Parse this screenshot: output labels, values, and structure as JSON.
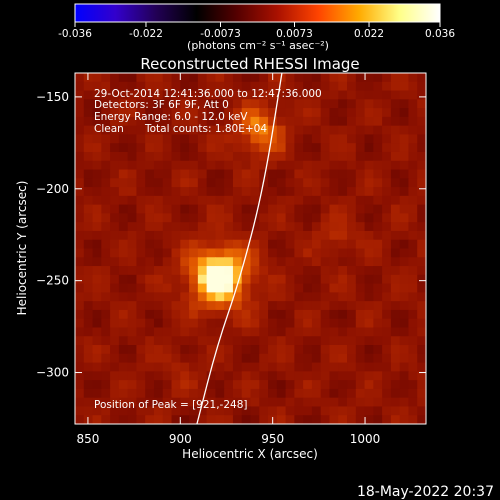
{
  "colorbar": {
    "min": -0.036,
    "max": 0.036,
    "ticks": [
      "-0.036",
      "-0.022",
      "-0.0073",
      "0.0073",
      "0.022",
      "0.036"
    ],
    "unit_label": "(photons cm⁻² s⁻¹ asec⁻²)",
    "colors": [
      "#0000ff",
      "#3300cc",
      "#220055",
      "#000000",
      "#550000",
      "#aa1100",
      "#ff4400",
      "#ffaa00",
      "#ffff88",
      "#ffffff"
    ]
  },
  "chart_data": {
    "type": "heatmap",
    "title": "Reconstructed RHESSI Image",
    "xlabel": "Heliocentric X (arcsec)",
    "ylabel": "Heliocentric Y (arcsec)",
    "xlim": [
      843,
      1033
    ],
    "ylim": [
      -328,
      -137
    ],
    "xticks": [
      850,
      900,
      950,
      1000
    ],
    "yticks": [
      -150,
      -200,
      -250,
      -300
    ],
    "sources": [
      {
        "x": 921,
        "y": -248,
        "intensity": 1.0,
        "label": "Position of Peak"
      },
      {
        "x": 943,
        "y": -168,
        "intensity": 0.55
      },
      {
        "x": 986,
        "y": -226,
        "intensity": 0.22
      },
      {
        "x": 900,
        "y": -297,
        "intensity": 0.15
      }
    ],
    "peak": [
      921,
      -248
    ],
    "limb_arc": [
      [
        955,
        -137
      ],
      [
        945,
        -200
      ],
      [
        932,
        -250
      ],
      [
        920,
        -285
      ],
      [
        909,
        -328
      ]
    ]
  },
  "annotations": {
    "time_range": "29-Oct-2014 12:41:36.000 to 12:47:36.000",
    "detectors": "Detectors: 3F 6F 9F, Att 0",
    "energy": "Energy Range: 6.0 - 12.0 keV",
    "method": "Clean",
    "counts": "Total counts: 1.80E+04",
    "peak_label": "Position of Peak = [921,-248]"
  },
  "footer": {
    "timestamp": "18-May-2022 20:37"
  }
}
